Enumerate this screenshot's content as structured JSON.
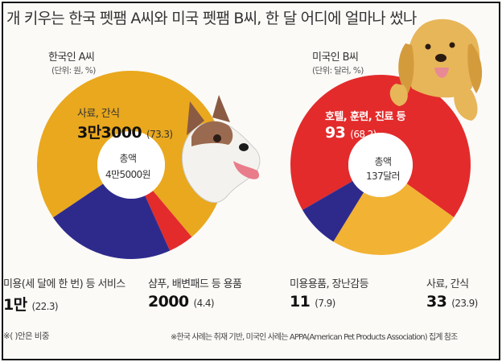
{
  "title": "개 키우는 한국 펫팸 A씨와 미국 펫팸 B씨, 한 달 어디에 얼마나 썼나",
  "chart_data": [
    {
      "type": "pie",
      "name": "한국인 A씨",
      "unit": "(단위: 원, %)",
      "total_label": "총액",
      "total_value": "4만5000원",
      "slices": [
        {
          "label": "사료, 간식",
          "value_text": "3만3000",
          "pct_text": "(73.3)",
          "value": 33000,
          "percent": 73.3,
          "color": "#E9A81D"
        },
        {
          "label": "샴푸, 배변패드 등 용품",
          "value_text": "2000",
          "pct_text": "(4.4)",
          "value": 2000,
          "percent": 4.4,
          "color": "#E32B2B"
        },
        {
          "label": "미용(세 달에 한 번) 등 서비스",
          "value_text": "1만",
          "pct_text": "(22.3)",
          "value": 10000,
          "percent": 22.3,
          "color": "#2E2A8C"
        }
      ]
    },
    {
      "type": "pie",
      "name": "미국인 B씨",
      "unit": "(단위: 달러, %)",
      "total_label": "총액",
      "total_value": "137달러",
      "slices": [
        {
          "label": "호텔, 훈련, 진료 등",
          "value_text": "93",
          "pct_text": "(68.2)",
          "value": 93,
          "percent": 68.2,
          "color": "#E32B2B"
        },
        {
          "label": "사료, 간식",
          "value_text": "33",
          "pct_text": "(23.9)",
          "value": 33,
          "percent": 23.9,
          "color": "#F2B233"
        },
        {
          "label": "미용용품, 장난감등",
          "value_text": "11",
          "pct_text": "(7.9)",
          "value": 11,
          "percent": 7.9,
          "color": "#2E2A8C"
        }
      ]
    }
  ],
  "notes": {
    "left": "※( )안은 비중",
    "right": "※한국 사례는 취재 기반, 미국인 사례는 APPA(American Pet Products Association) 집계 참조"
  },
  "illustrations": [
    "corgi-dog-illustration",
    "cocker-spaniel-illustration"
  ]
}
